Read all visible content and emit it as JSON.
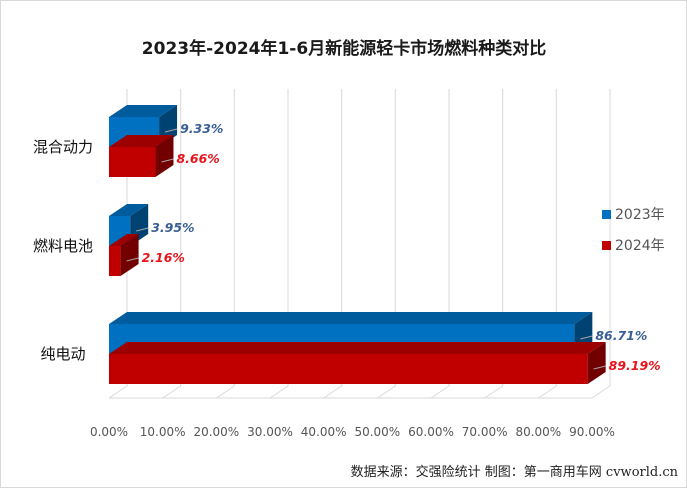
{
  "chart_data": {
    "type": "bar",
    "orientation": "horizontal",
    "title": "2023年-2024年1-6月新能源轻卡市场燃料种类对比",
    "categories": [
      "混合动力",
      "燃料电池",
      "纯电动"
    ],
    "series": [
      {
        "name": "2023年",
        "values": [
          9.33,
          3.95,
          86.71
        ],
        "labels": [
          "9.33%",
          "3.95%",
          "86.71%"
        ],
        "color": "#0070c0"
      },
      {
        "name": "2024年",
        "values": [
          8.66,
          2.16,
          89.19
        ],
        "labels": [
          "8.66%",
          "2.16%",
          "89.19%"
        ],
        "color": "#c00000"
      }
    ],
    "xlim": [
      0,
      90
    ],
    "xticks": [
      "0.00%",
      "10.00%",
      "20.00%",
      "30.00%",
      "40.00%",
      "50.00%",
      "60.00%",
      "70.00%",
      "80.00%",
      "90.00%"
    ],
    "grid": true,
    "legend_position": "right"
  },
  "footer": {
    "source": "数据来源：交强险统计 制图：第一商用车网 cvworld.cn"
  }
}
